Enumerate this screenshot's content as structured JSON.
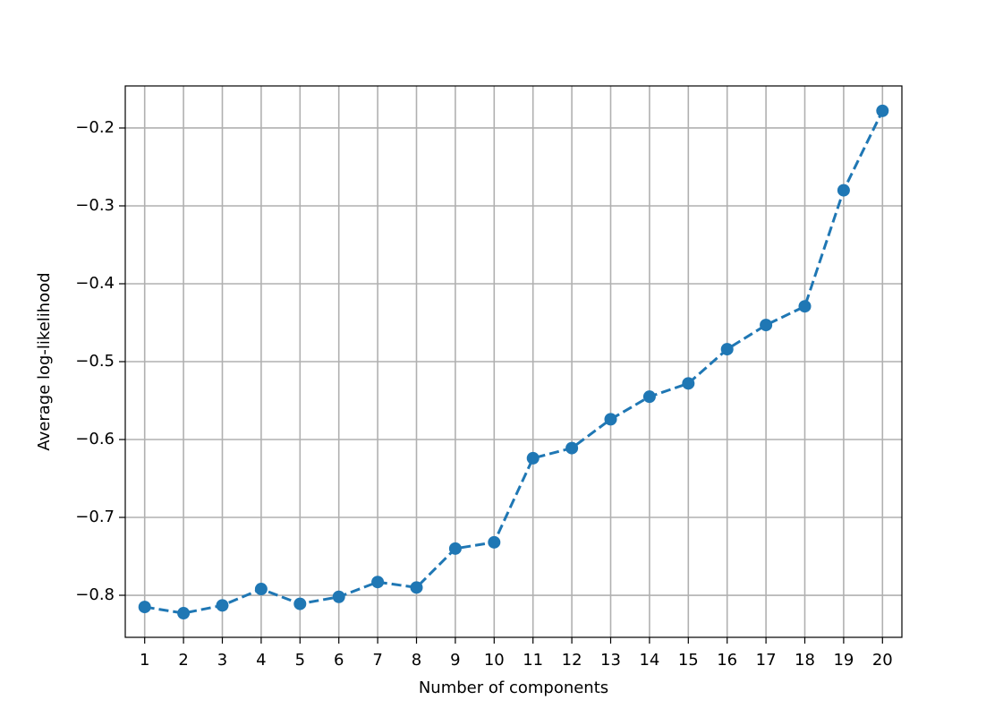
{
  "chart_data": {
    "type": "line",
    "xlabel": "Number of components",
    "ylabel": "Average log-likelihood",
    "x": [
      1,
      2,
      3,
      4,
      5,
      6,
      7,
      8,
      9,
      10,
      11,
      12,
      13,
      14,
      15,
      16,
      17,
      18,
      19,
      20
    ],
    "series": [
      {
        "name": "Average log-likelihood",
        "color": "#1f77b4",
        "values": [
          -0.815,
          -0.823,
          -0.813,
          -0.792,
          -0.811,
          -0.802,
          -0.783,
          -0.79,
          -0.74,
          -0.732,
          -0.624,
          -0.611,
          -0.574,
          -0.545,
          -0.528,
          -0.484,
          -0.453,
          -0.429,
          -0.28,
          -0.178
        ]
      }
    ],
    "xlim": [
      0.5,
      20.5
    ],
    "xticks": [
      1,
      2,
      3,
      4,
      5,
      6,
      7,
      8,
      9,
      10,
      11,
      12,
      13,
      14,
      15,
      16,
      17,
      18,
      19,
      20
    ],
    "ylim": [
      -0.854,
      -0.146
    ],
    "yticks": [
      {
        "value": -0.8,
        "label": "−0.8"
      },
      {
        "value": -0.7,
        "label": "−0.7"
      },
      {
        "value": -0.6,
        "label": "−0.6"
      },
      {
        "value": -0.5,
        "label": "−0.5"
      },
      {
        "value": -0.4,
        "label": "−0.4"
      },
      {
        "value": -0.3,
        "label": "−0.3"
      },
      {
        "value": -0.2,
        "label": "−0.2"
      }
    ],
    "grid": true,
    "linestyle": "dashed",
    "marker": true
  }
}
